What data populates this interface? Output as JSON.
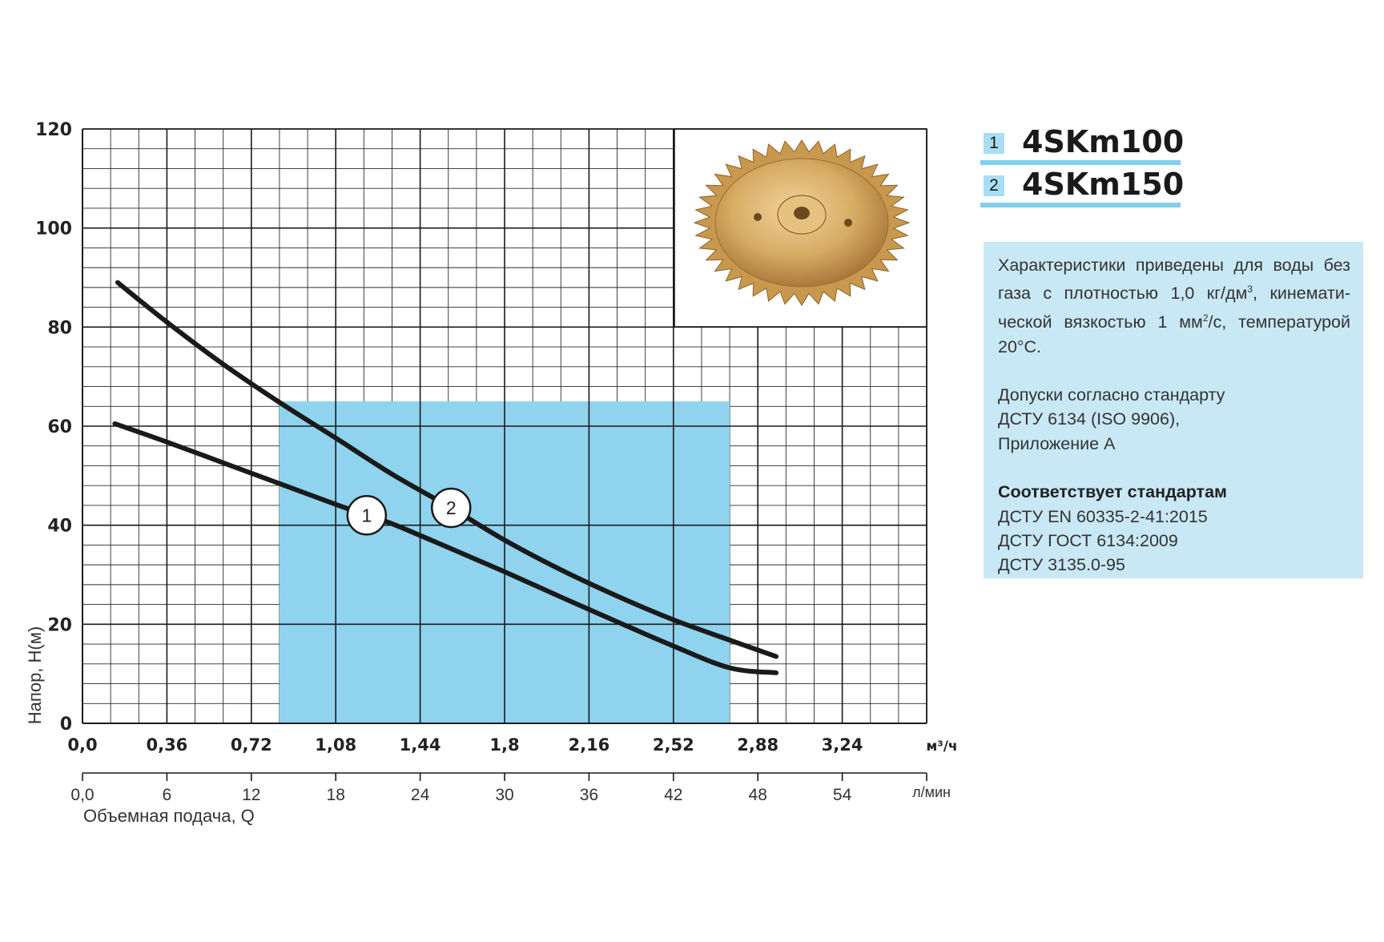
{
  "chart_data": {
    "type": "line",
    "ylabel": "Напор, H(м)",
    "xlabel": "Объемная подача, Q",
    "y_ticks": [
      "0",
      "20",
      "40",
      "60",
      "80",
      "100",
      "120"
    ],
    "ylim": [
      0,
      120
    ],
    "x_ticks_primary": [
      "0,0",
      "0,36",
      "0,72",
      "1,08",
      "1,44",
      "1,8",
      "2,16",
      "2,52",
      "2,88",
      "3,24"
    ],
    "x_unit_primary": "м³/ч",
    "x_ticks_secondary": [
      "0,0",
      "6",
      "12",
      "18",
      "24",
      "30",
      "36",
      "42",
      "48",
      "54"
    ],
    "x_unit_secondary": "л/мин",
    "xlim_lpm": [
      0,
      60
    ],
    "grid": true,
    "shaded_range_lpm": [
      14,
      46
    ],
    "shaded_color": "#8fd3ee",
    "series": [
      {
        "label": "1",
        "x_lpm": [
          2.3,
          6,
          10,
          14,
          18,
          20.2,
          22,
          26,
          30,
          34,
          38,
          42,
          46,
          49.3
        ],
        "y_m": [
          60.5,
          56.8,
          52.6,
          48.4,
          44.2,
          42,
          40.3,
          35.5,
          30.6,
          25.5,
          20.5,
          15.6,
          11.2,
          10.2
        ]
      },
      {
        "label": "2",
        "x_lpm": [
          2.5,
          6,
          10,
          14,
          18,
          22,
          26.2,
          30,
          34,
          38,
          42,
          46,
          49.3
        ],
        "y_m": [
          89,
          81,
          72.5,
          64.8,
          57.6,
          50.3,
          43.5,
          37,
          31,
          25.7,
          20.9,
          16.8,
          13.5
        ]
      }
    ]
  },
  "legend": [
    {
      "num": "1",
      "model": "4SKm100"
    },
    {
      "num": "2",
      "model": "4SKm150"
    }
  ],
  "image": {
    "icon": "bronze-impeller-icon"
  },
  "info": {
    "desc_parts": [
      "Характеристики приведены для воды без газа с плотностью 1,0 кг/дм",
      "3",
      ", кинемати-ческой вязкостью 1 мм",
      "2",
      "/с, температурой 20°C."
    ],
    "tolerance": [
      "Допуски согласно стандарту",
      "ДСТУ 6134 (ISO 9906),",
      "Приложение А"
    ],
    "standards_title": "Соответствует стандартам",
    "standards": [
      "ДСТУ EN 60335-2-41:2015",
      "ДСТУ ГОСТ 6134:2009",
      "ДСТУ 3135.0-95"
    ]
  }
}
